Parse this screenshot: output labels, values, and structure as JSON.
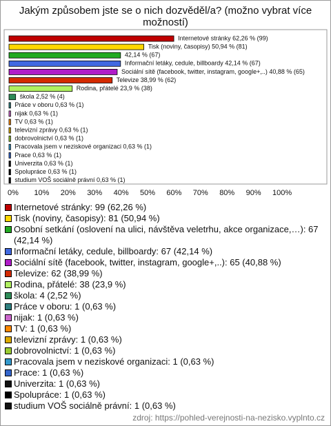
{
  "chart_data": {
    "type": "bar",
    "orientation": "horizontal",
    "title": "Jakým způsobem jste se o nich dozvěděl/a? (možno vybrat více možností)",
    "values": [
      62.26,
      50.94,
      42.14,
      42.14,
      40.88,
      38.99,
      23.9,
      2.52,
      0.63,
      0.63,
      0.63,
      0.63,
      0.63,
      0.63,
      0.63,
      0.63,
      0.63,
      0.63
    ],
    "value_labels": [
      "Internetové stránky 62,26 % (99)",
      "Tisk (noviny, časopisy) 50,94 % (81)",
      "42,14 % (67)",
      "Informační letáky, cedule, billboardy 42,14 % (67)",
      "Sociální sítě (facebook, twitter, instagram, google+,..) 40,88 % (65)",
      "Televize 38,99 % (62)",
      "Rodina, přátelé 23,9 % (38)",
      "škola 2,52 % (4)",
      "Práce v oboru 0,63 % (1)",
      "nijak 0,63 % (1)",
      "TV 0,63 % (1)",
      "televizní zprávy 0,63 % (1)",
      "dobrovolnictví 0,63 % (1)",
      "Pracovala jsem v neziskové organizaci 0,63 % (1)",
      "Prace 0,63 % (1)",
      "Univerzita 0,63 % (1)",
      "Spolupráce 0,63 % (1)",
      "studium VOŠ sociálně právní 0,63 % (1)"
    ],
    "legend_labels": [
      "Internetové stránky: 99 (62,26 %)",
      "Tisk (noviny, časopisy): 81 (50,94 %)",
      "Osobní setkání (oslovení na ulici, návštěva veletrhu, akce organizace,…): 67 (42,14 %)",
      "Informační letáky, cedule, billboardy: 67 (42,14 %)",
      "Sociální sítě (facebook, twitter, instagram, google+,..): 65 (40,88 %)",
      "Televize: 62 (38,99 %)",
      "Rodina, přátelé: 38 (23,9 %)",
      "škola: 4 (2,52 %)",
      "Práce v oboru: 1 (0,63 %)",
      "nijak: 1 (0,63 %)",
      "TV: 1 (0,63 %)",
      "televizní zprávy: 1 (0,63 %)",
      "dobrovolnictví: 1 (0,63 %)",
      "Pracovala jsem v neziskové organizaci: 1 (0,63 %)",
      "Prace: 1 (0,63 %)",
      "Univerzita: 1 (0,63 %)",
      "Spolupráce: 1 (0,63 %)",
      "studium VOŠ sociálně právní: 1 (0,63 %)"
    ],
    "colors": [
      "#c00000",
      "#ffd700",
      "#22aa22",
      "#4169e1",
      "#b01cc8",
      "#d42a00",
      "#b0f060",
      "#2e8b57",
      "#2f7f7f",
      "#cc66cc",
      "#ff8800",
      "#ddaa00",
      "#99cc33",
      "#3399cc",
      "#3366cc",
      "#111111",
      "#000000",
      "#111111"
    ],
    "xlim": [
      0,
      100
    ],
    "xticks": [
      {
        "value": 0,
        "label": "0%"
      },
      {
        "value": 10,
        "label": "10%"
      },
      {
        "value": 20,
        "label": "20%"
      },
      {
        "value": 30,
        "label": "30%"
      },
      {
        "value": 40,
        "label": "40%"
      },
      {
        "value": 50,
        "label": "50%"
      },
      {
        "value": 60,
        "label": "60%"
      },
      {
        "value": 70,
        "label": "70%"
      },
      {
        "value": 80,
        "label": "80%"
      },
      {
        "value": 90,
        "label": "90%"
      },
      {
        "value": 100,
        "label": "100%"
      }
    ],
    "source": "zdroj: https://pohled-verejnosti-na-nezisko.vyplnto.cz"
  }
}
